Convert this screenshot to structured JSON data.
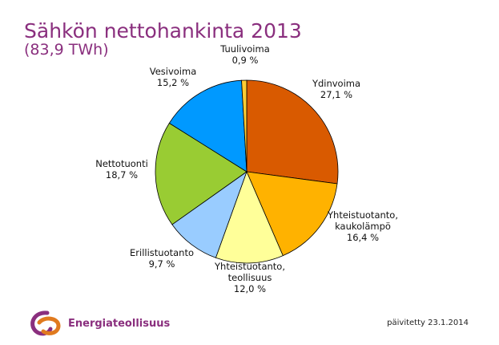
{
  "chart_data": {
    "type": "pie",
    "title": "Sähkön nettohankinta 2013",
    "subtitle": "(83,9 TWh)",
    "slices": [
      {
        "name": "Ydinvoima",
        "value": 27.1,
        "label": "27,1 %",
        "color": "#d95a00"
      },
      {
        "name": "Yhteistuotanto, kaukolämpö",
        "name_lines": [
          "Yhteistuotanto,",
          "kaukolämpö"
        ],
        "value": 16.4,
        "label": "16,4 %",
        "color": "#ffb200"
      },
      {
        "name": "Yhteistuotanto, teollisuus",
        "name_lines": [
          "Yhteistuotanto,",
          "teollisuus"
        ],
        "value": 12.0,
        "label": "12,0 %",
        "color": "#ffff99"
      },
      {
        "name": "Erillistuotanto",
        "value": 9.7,
        "label": "9,7 %",
        "color": "#99ccff"
      },
      {
        "name": "Nettotuonti",
        "value": 18.7,
        "label": "18,7 %",
        "color": "#99cc33"
      },
      {
        "name": "Vesivoima",
        "value": 15.2,
        "label": "15,2 %",
        "color": "#0099ff"
      },
      {
        "name": "Tuulivoima",
        "value": 0.9,
        "label": "0,9 %",
        "color": "#ffcc33"
      }
    ],
    "start": "12 o'clock",
    "direction": "clockwise"
  },
  "footer": {
    "brand": "Energiateollisuus",
    "updated": "päivitetty 23.1.2014",
    "logo_colors": [
      "#8a2f7e",
      "#e07a1f"
    ]
  }
}
